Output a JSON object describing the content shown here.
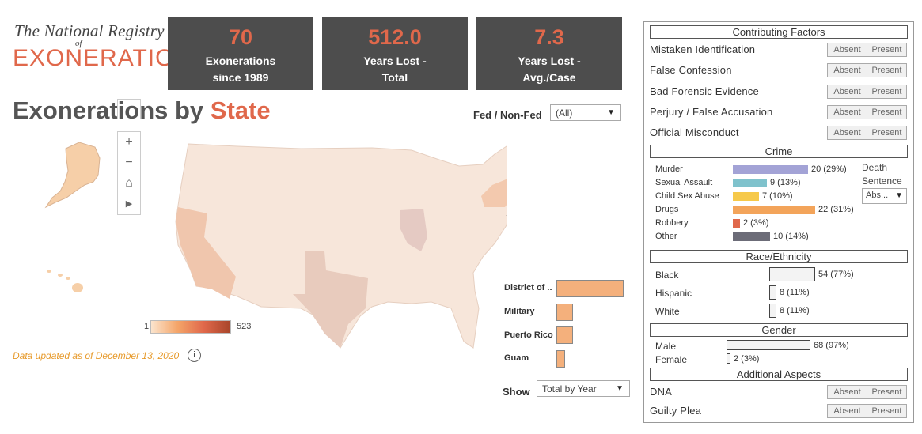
{
  "logo": {
    "line1": "The National Registry",
    "of": "of",
    "line2": "EXONERATIONS"
  },
  "kpis": [
    {
      "value": "70",
      "label1": "Exonerations",
      "label2": "since 1989"
    },
    {
      "value": "512.0",
      "label1": "Years Lost -",
      "label2": "Total"
    },
    {
      "value": "7.3",
      "label1": "Years Lost -",
      "label2": "Avg./Case"
    }
  ],
  "title": {
    "main": "Exonerations by ",
    "accent": "State"
  },
  "filter": {
    "label": "Fed / Non-Fed",
    "value": "(All)"
  },
  "map_controls": {
    "zoom_in": "+",
    "zoom_out": "−",
    "home": "⌂",
    "play": "▶"
  },
  "territories": [
    {
      "label": "District of ..",
      "value": 8
    },
    {
      "label": "Military",
      "value": 2
    },
    {
      "label": "Puerto Rico",
      "value": 2
    },
    {
      "label": "Guam",
      "value": 1
    }
  ],
  "legend": {
    "min": "1",
    "max": "523"
  },
  "updated": "Data updated as of December 13, 2020",
  "show": {
    "label": "Show",
    "value": "Total by Year"
  },
  "colors": {
    "accent": "#e0684b",
    "card": "#4d4d4d",
    "highlight": "#f4b07c"
  },
  "panel": {
    "contributing_title": "Contributing Factors",
    "factors": [
      "Mistaken Identification",
      "False Confession",
      "Bad Forensic Evidence",
      "Perjury / False Accusation",
      "Official Misconduct"
    ],
    "absent": "Absent",
    "present": "Present",
    "crime_title": "Crime",
    "crimes": [
      {
        "label": "Murder",
        "value": 20,
        "text": "20 (29%)",
        "color": "#a3a3d6"
      },
      {
        "label": "Sexual Assault",
        "value": 9,
        "text": "9 (13%)",
        "color": "#7fc2cc"
      },
      {
        "label": "Child Sex Abuse",
        "value": 7,
        "text": "7 (10%)",
        "color": "#f6c94a"
      },
      {
        "label": "Drugs",
        "value": 22,
        "text": "22 (31%)",
        "color": "#f3a45a"
      },
      {
        "label": "Robbery",
        "value": 2,
        "text": "2 (3%)",
        "color": "#e0684b"
      },
      {
        "label": "Other",
        "value": 10,
        "text": "10 (14%)",
        "color": "#6c6c78"
      }
    ],
    "death_label1": "Death",
    "death_label2": "Sentence",
    "death_value": "Abs...",
    "race_title": "Race/Ethnicity",
    "races": [
      {
        "label": "Black",
        "value": 54,
        "text": "54 (77%)"
      },
      {
        "label": "Hispanic",
        "value": 8,
        "text": "8 (11%)"
      },
      {
        "label": "White",
        "value": 8,
        "text": "8 (11%)"
      }
    ],
    "gender_title": "Gender",
    "genders": [
      {
        "label": "Male",
        "value": 68,
        "text": "68 (97%)"
      },
      {
        "label": "Female",
        "value": 2,
        "text": "2 (3%)"
      }
    ],
    "additional_title": "Additional Aspects",
    "aspects": [
      "DNA",
      "Guilty Plea"
    ]
  }
}
